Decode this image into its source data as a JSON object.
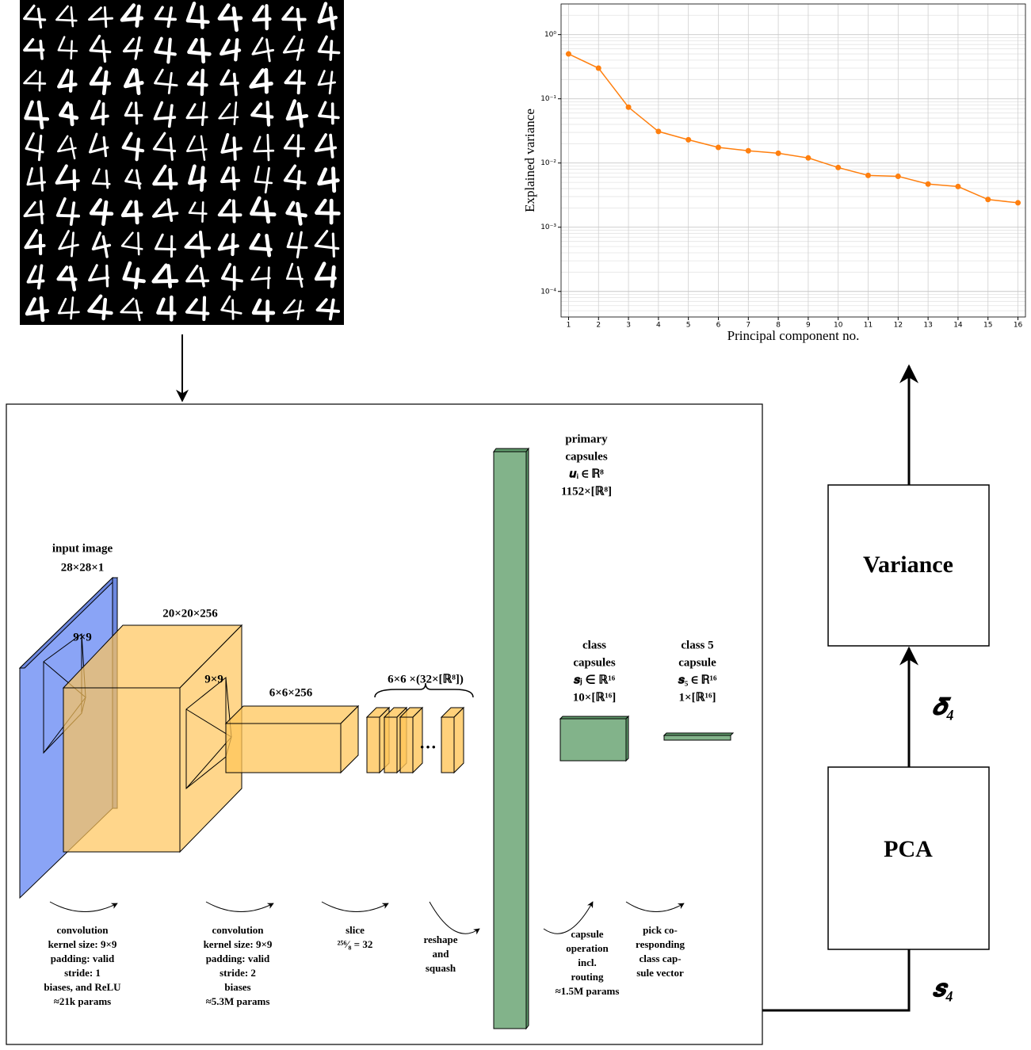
{
  "chart_data": {
    "type": "line",
    "x": [
      1,
      2,
      3,
      4,
      5,
      6,
      7,
      8,
      9,
      10,
      11,
      12,
      13,
      14,
      15,
      16
    ],
    "values": [
      0.5,
      0.3,
      0.074,
      0.031,
      0.023,
      0.0175,
      0.0155,
      0.0142,
      0.012,
      0.0085,
      0.0064,
      0.0062,
      0.0047,
      0.0043,
      0.0027,
      0.0024
    ],
    "color": "#ff7f0e",
    "xlabel": "Principal component no.",
    "ylabel": "Explained variance",
    "xlim": [
      0.75,
      16.25
    ],
    "xticks": [
      1,
      2,
      3,
      4,
      5,
      6,
      7,
      8,
      9,
      10,
      11,
      12,
      13,
      14,
      15,
      16
    ],
    "ylim": [
      4e-05,
      3
    ],
    "log_y": true,
    "grid": true,
    "minor_grid": true,
    "yticks": [
      {
        "value": 1,
        "label": "10⁰"
      },
      {
        "value": 0.1,
        "label": "10⁻¹"
      },
      {
        "value": 0.01,
        "label": "10⁻²"
      },
      {
        "value": 0.001,
        "label": "10⁻³"
      },
      {
        "value": 0.0001,
        "label": "10⁻⁴"
      }
    ]
  },
  "diagram": {
    "input_image": [
      "input image",
      "28×28×1"
    ],
    "kernel_1": "9×9",
    "conv1_output": "20×20×256",
    "kernel_2": "9×9",
    "conv2_output": "6×6×256",
    "slices": "6×6 ×(32×[ℝ⁸])",
    "primary_capsules": [
      "primary",
      "capsules",
      "𝒖ᵢ ∈ ℝ⁸",
      "1152×[ℝ⁸]"
    ],
    "class_capsules": [
      "class",
      "capsules",
      "𝒔ⱼ ∈ ℝ¹⁶",
      "10×[ℝ¹⁶]"
    ],
    "class_5_capsule": [
      "class 5",
      "capsule",
      "𝒔₅ ∈ ℝ¹⁶",
      "1×[ℝ¹⁶]"
    ],
    "operations": [
      [
        "convolution",
        "kernel size: 9×9",
        "padding: valid",
        "stride: 1",
        "biases, and ReLU",
        "≈21k params"
      ],
      [
        "convolution",
        "kernel size: 9×9",
        "padding: valid",
        "stride: 2",
        "biases",
        "≈5.3M params"
      ],
      [
        "slice",
        "²⁵⁶⁄₈ = 32"
      ],
      [
        "reshape",
        "and",
        "squash"
      ],
      [
        "capsule",
        "operation",
        "incl.",
        "routing",
        "≈1.5M params"
      ],
      [
        "pick co-",
        "responding",
        "class cap-",
        "sule vector"
      ]
    ],
    "pca": "PCA",
    "variance": "Variance",
    "delta_label": "𝜹₄",
    "s_label": "𝒔₄"
  }
}
